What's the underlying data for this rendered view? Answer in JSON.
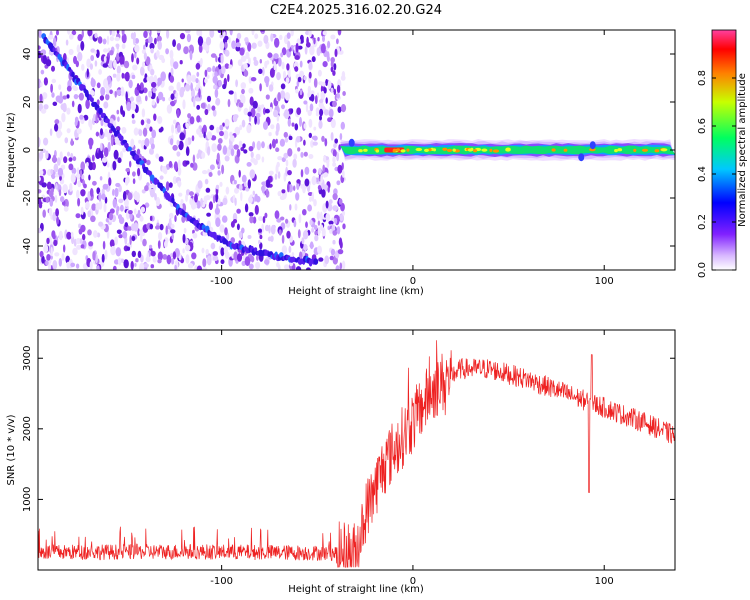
{
  "title": "C2E4.2025.316.02.20.G24",
  "chart_data": [
    {
      "type": "heatmap",
      "xlabel": "Height of straight line (km)",
      "ylabel": "Frequency (Hz)",
      "xlim": [
        -196,
        137
      ],
      "ylim": [
        -50,
        50
      ],
      "xticks": [
        -100,
        0,
        100
      ],
      "yticks": [
        -40,
        -20,
        0,
        20,
        40
      ],
      "noise_region_x": [
        -196,
        -38
      ],
      "chirp_trace": [
        {
          "x": -193,
          "y": 47
        },
        {
          "x": -150,
          "y": 2
        },
        {
          "x": -120,
          "y": -27
        },
        {
          "x": -95,
          "y": -40
        },
        {
          "x": -72,
          "y": -44
        },
        {
          "x": -50,
          "y": -47
        }
      ],
      "carrier_trace": {
        "x_start": -38,
        "x_end": 137,
        "y": 0
      },
      "colorbar": {
        "label": "Normalized spectral amplitude",
        "range": [
          0,
          1
        ],
        "ticks": [
          "0.0",
          "0.2",
          "0.4",
          "0.6",
          "0.8"
        ],
        "tick_values": [
          0.0,
          0.2,
          0.4,
          0.6,
          0.8
        ]
      }
    },
    {
      "type": "line",
      "xlabel": "Height of straight line (km)",
      "ylabel": "SNR (10 * v/v)",
      "xlim": [
        -196,
        137
      ],
      "ylim": [
        0,
        3400
      ],
      "xticks": [
        -100,
        0,
        100
      ],
      "yticks": [
        1000,
        2000,
        3000
      ],
      "series_color": "#ee2222",
      "envelope": {
        "x": [
          -196,
          -120,
          -40,
          -30,
          -25,
          -15,
          0,
          10,
          25,
          40,
          60,
          80,
          100,
          120,
          137
        ],
        "y": [
          250,
          260,
          240,
          250,
          800,
          1500,
          2100,
          2550,
          2850,
          2850,
          2700,
          2500,
          2300,
          2100,
          1900
        ]
      }
    }
  ]
}
